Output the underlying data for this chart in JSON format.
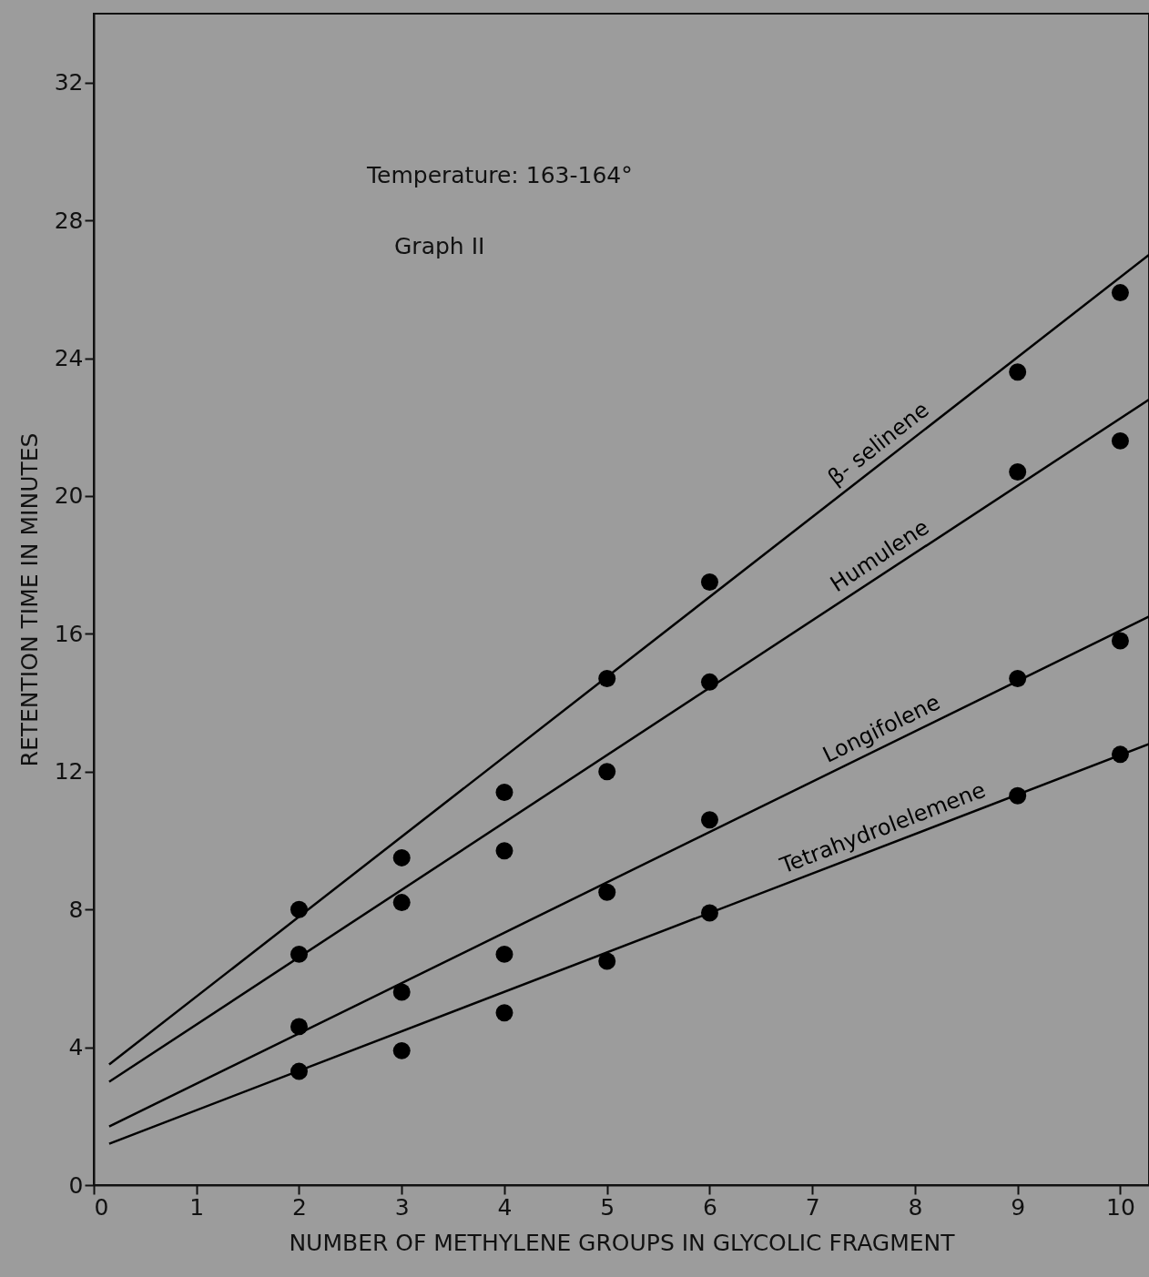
{
  "chart_data": {
    "type": "scatter",
    "xlabel": "NUMBER OF METHYLENE GROUPS IN GLYCOLIC FRAGMENT",
    "ylabel": "RETENTION TIME IN MINUTES",
    "xlim": [
      0,
      10.28
    ],
    "ylim": [
      0,
      34
    ],
    "xticks": [
      0,
      1,
      2,
      3,
      4,
      5,
      6,
      7,
      8,
      9,
      10
    ],
    "yticks": [
      0,
      4,
      8,
      12,
      16,
      20,
      24,
      28,
      32
    ],
    "grid": false,
    "marker": "circle",
    "line_style": "solid",
    "annotations": [
      "Temperature:  163-164°",
      "Graph  II"
    ],
    "series": [
      {
        "color": "#000000",
        "x": [
          2,
          3,
          4,
          5,
          6,
          9,
          10
        ],
        "values": [
          8.0,
          9.5,
          11.4,
          14.7,
          17.5,
          23.6,
          25.9
        ]
      },
      {
        "color": "#000000",
        "x": [
          2,
          3,
          4,
          5,
          6,
          9,
          10
        ],
        "values": [
          6.7,
          8.2,
          9.7,
          12.0,
          14.6,
          20.7,
          21.6
        ]
      },
      {
        "color": "#000000",
        "x": [
          2,
          3,
          4,
          5,
          6,
          9,
          10
        ],
        "values": [
          4.6,
          5.6,
          6.7,
          8.5,
          10.6,
          14.7,
          15.8
        ]
      },
      {
        "color": "#000000",
        "x": [
          2,
          3,
          4,
          5,
          6,
          9,
          10
        ],
        "values": [
          3.3,
          3.9,
          5.0,
          6.5,
          7.9,
          11.3,
          12.5
        ]
      },
      {
        "type": "line",
        "name": "β- selinene",
        "marker": "none",
        "color": "#000000",
        "x": [
          0.15,
          10.28
        ],
        "values": [
          3.5,
          27.0
        ]
      },
      {
        "type": "line",
        "name": "Humulene",
        "marker": "none",
        "color": "#000000",
        "x": [
          0.15,
          10.28
        ],
        "values": [
          3.0,
          22.8
        ]
      },
      {
        "type": "line",
        "name": "Longifolene",
        "marker": "none",
        "color": "#000000",
        "x": [
          0.15,
          10.28
        ],
        "values": [
          1.7,
          16.5
        ]
      },
      {
        "type": "line",
        "name": "Tetrahydrolelemene",
        "marker": "none",
        "color": "#000000",
        "x": [
          0.15,
          10.28
        ],
        "values": [
          1.2,
          12.8
        ]
      }
    ]
  }
}
